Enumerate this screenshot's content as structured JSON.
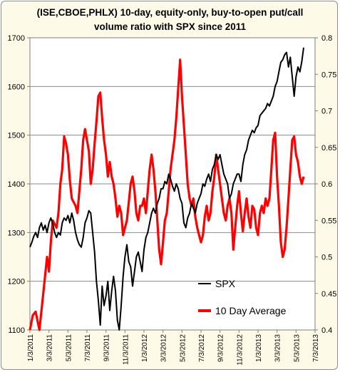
{
  "chart_data": {
    "type": "line",
    "title_line1": "(ISE,CBOE,PHLX) 10-day, equity-only, buy-to-open put/call",
    "title_line2": "volume ratio with SPX since 2011",
    "x_tick_labels": [
      "1/3/2011",
      "3/3/2011",
      "5/3/2011",
      "7/3/2011",
      "9/3/2011",
      "11/3/2011",
      "1/3/2012",
      "3/3/2012",
      "5/3/2012",
      "7/3/2012",
      "9/3/2012",
      "11/3/2012",
      "1/3/2013",
      "3/3/2013",
      "5/3/2013",
      "7/3/2013"
    ],
    "y_left": {
      "ticks": [
        "1100",
        "1200",
        "1300",
        "1400",
        "1500",
        "1600",
        "1700"
      ],
      "lim": [
        1100,
        1700
      ]
    },
    "y_right": {
      "ticks": [
        "0.4",
        "0.45",
        "0.5",
        "0.55",
        "0.6",
        "0.65",
        "0.7",
        "0.75",
        "0.8"
      ],
      "lim": [
        0.4,
        0.8
      ]
    },
    "grid": "horizontal",
    "legend_position": "bottom-right",
    "series": [
      {
        "name": "SPX",
        "axis": "left",
        "color": "#000000",
        "points": [
          [
            0,
            1270
          ],
          [
            0.1,
            1280
          ],
          [
            0.2,
            1292
          ],
          [
            0.3,
            1300
          ],
          [
            0.4,
            1290
          ],
          [
            0.5,
            1310
          ],
          [
            0.6,
            1320
          ],
          [
            0.7,
            1305
          ],
          [
            0.8,
            1315
          ],
          [
            0.9,
            1300
          ],
          [
            1.0,
            1320
          ],
          [
            1.1,
            1330
          ],
          [
            1.2,
            1318
          ],
          [
            1.3,
            1300
          ],
          [
            1.4,
            1290
          ],
          [
            1.5,
            1300
          ],
          [
            1.6,
            1295
          ],
          [
            1.7,
            1320
          ],
          [
            1.8,
            1330
          ],
          [
            1.9,
            1325
          ],
          [
            2.0,
            1335
          ],
          [
            2.1,
            1320
          ],
          [
            2.2,
            1340
          ],
          [
            2.3,
            1325
          ],
          [
            2.4,
            1300
          ],
          [
            2.5,
            1285
          ],
          [
            2.6,
            1275
          ],
          [
            2.7,
            1270
          ],
          [
            2.8,
            1290
          ],
          [
            2.9,
            1320
          ],
          [
            3.0,
            1330
          ],
          [
            3.1,
            1345
          ],
          [
            3.2,
            1340
          ],
          [
            3.3,
            1300
          ],
          [
            3.4,
            1260
          ],
          [
            3.5,
            1200
          ],
          [
            3.6,
            1160
          ],
          [
            3.7,
            1110
          ],
          [
            3.8,
            1190
          ],
          [
            3.9,
            1150
          ],
          [
            4.0,
            1170
          ],
          [
            4.1,
            1200
          ],
          [
            4.2,
            1140
          ],
          [
            4.3,
            1180
          ],
          [
            4.4,
            1210
          ],
          [
            4.5,
            1180
          ],
          [
            4.6,
            1120
          ],
          [
            4.7,
            1100
          ],
          [
            4.8,
            1150
          ],
          [
            4.9,
            1210
          ],
          [
            5.0,
            1250
          ],
          [
            5.1,
            1275
          ],
          [
            5.2,
            1240
          ],
          [
            5.3,
            1230
          ],
          [
            5.4,
            1190
          ],
          [
            5.5,
            1220
          ],
          [
            5.6,
            1250
          ],
          [
            5.7,
            1260
          ],
          [
            5.8,
            1240
          ],
          [
            5.9,
            1220
          ],
          [
            6.0,
            1265
          ],
          [
            6.1,
            1290
          ],
          [
            6.2,
            1300
          ],
          [
            6.3,
            1320
          ],
          [
            6.4,
            1340
          ],
          [
            6.5,
            1350
          ],
          [
            6.6,
            1340
          ],
          [
            6.7,
            1360
          ],
          [
            6.8,
            1370
          ],
          [
            6.9,
            1390
          ],
          [
            7.0,
            1390
          ],
          [
            7.1,
            1405
          ],
          [
            7.2,
            1400
          ],
          [
            7.3,
            1420
          ],
          [
            7.4,
            1410
          ],
          [
            7.5,
            1395
          ],
          [
            7.6,
            1385
          ],
          [
            7.7,
            1400
          ],
          [
            7.8,
            1390
          ],
          [
            7.9,
            1370
          ],
          [
            8.0,
            1360
          ],
          [
            8.1,
            1320
          ],
          [
            8.2,
            1310
          ],
          [
            8.3,
            1330
          ],
          [
            8.4,
            1340
          ],
          [
            8.5,
            1360
          ],
          [
            8.6,
            1350
          ],
          [
            8.7,
            1340
          ],
          [
            8.8,
            1360
          ],
          [
            8.9,
            1370
          ],
          [
            9.0,
            1380
          ],
          [
            9.1,
            1400
          ],
          [
            9.2,
            1395
          ],
          [
            9.3,
            1410
          ],
          [
            9.4,
            1420
          ],
          [
            9.5,
            1405
          ],
          [
            9.6,
            1430
          ],
          [
            9.7,
            1440
          ],
          [
            9.8,
            1460
          ],
          [
            9.9,
            1450
          ],
          [
            10.0,
            1460
          ],
          [
            10.1,
            1440
          ],
          [
            10.2,
            1420
          ],
          [
            10.3,
            1410
          ],
          [
            10.4,
            1400
          ],
          [
            10.5,
            1370
          ],
          [
            10.6,
            1380
          ],
          [
            10.7,
            1400
          ],
          [
            10.8,
            1410
          ],
          [
            10.9,
            1420
          ],
          [
            11.0,
            1420
          ],
          [
            11.1,
            1405
          ],
          [
            11.2,
            1440
          ],
          [
            11.3,
            1460
          ],
          [
            11.4,
            1470
          ],
          [
            11.5,
            1490
          ],
          [
            11.6,
            1500
          ],
          [
            11.7,
            1510
          ],
          [
            11.8,
            1505
          ],
          [
            11.9,
            1515
          ],
          [
            12.0,
            1520
          ],
          [
            12.1,
            1540
          ],
          [
            12.2,
            1545
          ],
          [
            12.3,
            1550
          ],
          [
            12.4,
            1555
          ],
          [
            12.5,
            1565
          ],
          [
            12.6,
            1560
          ],
          [
            12.7,
            1570
          ],
          [
            12.8,
            1580
          ],
          [
            12.9,
            1600
          ],
          [
            13.0,
            1610
          ],
          [
            13.1,
            1630
          ],
          [
            13.2,
            1650
          ],
          [
            13.3,
            1655
          ],
          [
            13.4,
            1665
          ],
          [
            13.5,
            1670
          ],
          [
            13.6,
            1640
          ],
          [
            13.7,
            1660
          ],
          [
            13.8,
            1620
          ],
          [
            13.9,
            1580
          ],
          [
            14.0,
            1620
          ],
          [
            14.1,
            1640
          ],
          [
            14.2,
            1630
          ],
          [
            14.3,
            1650
          ],
          [
            14.4,
            1680
          ]
        ]
      },
      {
        "name": "10 Day Average",
        "axis": "right",
        "color": "#ff0000",
        "points": [
          [
            0,
            0.4
          ],
          [
            0.15,
            0.42
          ],
          [
            0.3,
            0.425
          ],
          [
            0.5,
            0.4
          ],
          [
            0.7,
            0.45
          ],
          [
            0.9,
            0.5
          ],
          [
            1.0,
            0.48
          ],
          [
            1.1,
            0.52
          ],
          [
            1.2,
            0.55
          ],
          [
            1.4,
            0.54
          ],
          [
            1.5,
            0.56
          ],
          [
            1.6,
            0.6
          ],
          [
            1.7,
            0.62
          ],
          [
            1.8,
            0.665
          ],
          [
            1.9,
            0.655
          ],
          [
            2.0,
            0.64
          ],
          [
            2.1,
            0.605
          ],
          [
            2.2,
            0.58
          ],
          [
            2.4,
            0.57
          ],
          [
            2.5,
            0.56
          ],
          [
            2.6,
            0.59
          ],
          [
            2.7,
            0.62
          ],
          [
            2.8,
            0.66
          ],
          [
            2.9,
            0.675
          ],
          [
            3.0,
            0.66
          ],
          [
            3.1,
            0.645
          ],
          [
            3.2,
            0.6
          ],
          [
            3.3,
            0.62
          ],
          [
            3.4,
            0.655
          ],
          [
            3.5,
            0.685
          ],
          [
            3.6,
            0.72
          ],
          [
            3.7,
            0.725
          ],
          [
            3.8,
            0.69
          ],
          [
            3.9,
            0.66
          ],
          [
            4.0,
            0.64
          ],
          [
            4.1,
            0.61
          ],
          [
            4.2,
            0.63
          ],
          [
            4.3,
            0.61
          ],
          [
            4.4,
            0.6
          ],
          [
            4.5,
            0.58
          ],
          [
            4.6,
            0.555
          ],
          [
            4.7,
            0.57
          ],
          [
            4.8,
            0.56
          ],
          [
            4.9,
            0.53
          ],
          [
            5.0,
            0.54
          ],
          [
            5.1,
            0.55
          ],
          [
            5.2,
            0.575
          ],
          [
            5.3,
            0.6
          ],
          [
            5.4,
            0.61
          ],
          [
            5.5,
            0.59
          ],
          [
            5.6,
            0.56
          ],
          [
            5.7,
            0.55
          ],
          [
            5.8,
            0.57
          ],
          [
            5.9,
            0.57
          ],
          [
            6.0,
            0.58
          ],
          [
            6.1,
            0.56
          ],
          [
            6.2,
            0.59
          ],
          [
            6.3,
            0.62
          ],
          [
            6.4,
            0.64
          ],
          [
            6.5,
            0.62
          ],
          [
            6.6,
            0.59
          ],
          [
            6.7,
            0.55
          ],
          [
            6.8,
            0.51
          ],
          [
            6.9,
            0.49
          ],
          [
            7.0,
            0.52
          ],
          [
            7.1,
            0.55
          ],
          [
            7.2,
            0.56
          ],
          [
            7.3,
            0.59
          ],
          [
            7.4,
            0.62
          ],
          [
            7.5,
            0.64
          ],
          [
            7.6,
            0.66
          ],
          [
            7.7,
            0.69
          ],
          [
            7.8,
            0.73
          ],
          [
            7.9,
            0.77
          ],
          [
            8.0,
            0.72
          ],
          [
            8.1,
            0.68
          ],
          [
            8.2,
            0.64
          ],
          [
            8.3,
            0.6
          ],
          [
            8.4,
            0.58
          ],
          [
            8.5,
            0.57
          ],
          [
            8.6,
            0.58
          ],
          [
            8.7,
            0.555
          ],
          [
            8.8,
            0.54
          ],
          [
            8.9,
            0.53
          ],
          [
            9.0,
            0.52
          ],
          [
            9.1,
            0.53
          ],
          [
            9.2,
            0.555
          ],
          [
            9.3,
            0.57
          ],
          [
            9.4,
            0.55
          ],
          [
            9.5,
            0.56
          ],
          [
            9.6,
            0.59
          ],
          [
            9.7,
            0.61
          ],
          [
            9.8,
            0.64
          ],
          [
            9.9,
            0.62
          ],
          [
            10.0,
            0.6
          ],
          [
            10.1,
            0.58
          ],
          [
            10.2,
            0.56
          ],
          [
            10.3,
            0.55
          ],
          [
            10.4,
            0.57
          ],
          [
            10.5,
            0.58
          ],
          [
            10.6,
            0.56
          ],
          [
            10.7,
            0.51
          ],
          [
            10.8,
            0.54
          ],
          [
            10.9,
            0.57
          ],
          [
            11.0,
            0.59
          ],
          [
            11.1,
            0.56
          ],
          [
            11.2,
            0.535
          ],
          [
            11.3,
            0.56
          ],
          [
            11.4,
            0.58
          ],
          [
            11.5,
            0.555
          ],
          [
            11.6,
            0.54
          ],
          [
            11.7,
            0.57
          ],
          [
            11.8,
            0.565
          ],
          [
            11.9,
            0.54
          ],
          [
            12.0,
            0.53
          ],
          [
            12.1,
            0.56
          ],
          [
            12.2,
            0.57
          ],
          [
            12.3,
            0.56
          ],
          [
            12.4,
            0.58
          ],
          [
            12.5,
            0.57
          ],
          [
            12.6,
            0.58
          ],
          [
            12.7,
            0.62
          ],
          [
            12.8,
            0.66
          ],
          [
            12.9,
            0.67
          ],
          [
            13.0,
            0.61
          ],
          [
            13.1,
            0.57
          ],
          [
            13.2,
            0.52
          ],
          [
            13.3,
            0.5
          ],
          [
            13.4,
            0.51
          ],
          [
            13.5,
            0.54
          ],
          [
            13.6,
            0.58
          ],
          [
            13.7,
            0.62
          ],
          [
            13.8,
            0.66
          ],
          [
            13.9,
            0.665
          ],
          [
            14.0,
            0.64
          ],
          [
            14.1,
            0.63
          ],
          [
            14.2,
            0.61
          ],
          [
            14.3,
            0.6
          ],
          [
            14.4,
            0.61
          ]
        ]
      }
    ]
  }
}
